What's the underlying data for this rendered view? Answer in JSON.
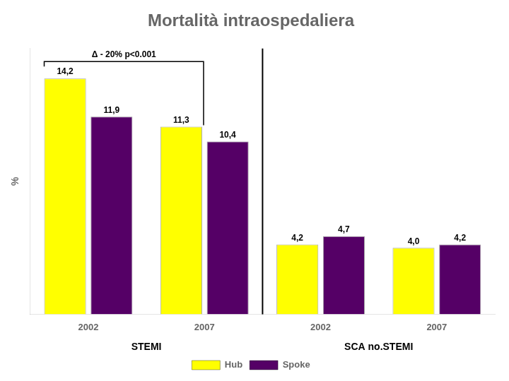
{
  "chart_data": {
    "type": "bar",
    "title": "Mortalità intraospedaliera",
    "categories": [
      "2002",
      "2007",
      "2002",
      "2007"
    ],
    "group_labels": [
      "STEMI",
      "SCA no.STEMI"
    ],
    "series": [
      {
        "name": "Hub",
        "color": "#ffff00",
        "values": [
          14.2,
          11.3,
          4.2,
          4.0
        ],
        "value_labels": [
          "14,2",
          "11,3",
          "4,2",
          "4,0"
        ]
      },
      {
        "name": "Spoke",
        "color": "#550066",
        "values": [
          11.9,
          10.4,
          4.7,
          4.2
        ],
        "value_labels": [
          "11,9",
          "10,4",
          "4,7",
          "4,2"
        ]
      }
    ],
    "annotations": [
      "Δ - 20% p<0.001"
    ],
    "y_label": "%",
    "ylim": [
      0,
      16
    ],
    "grid": false,
    "legend": "bottom",
    "data_labels": true,
    "tick_labels": "x"
  }
}
